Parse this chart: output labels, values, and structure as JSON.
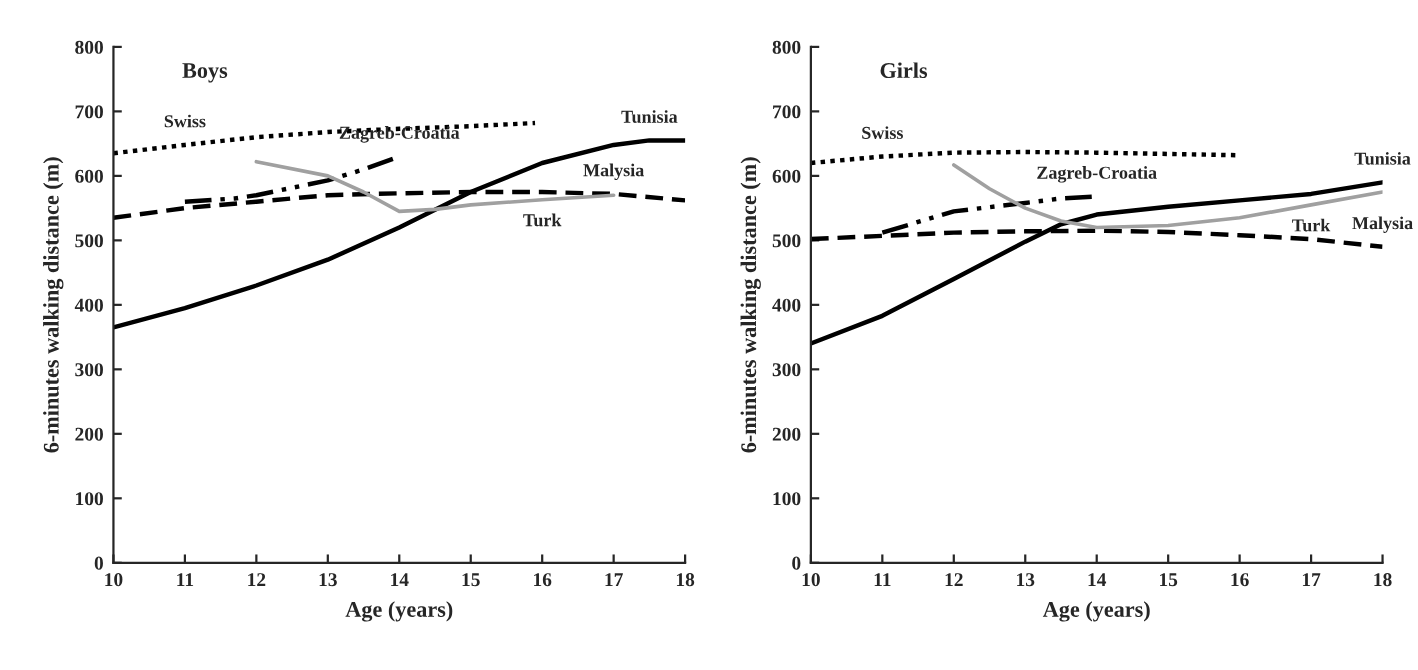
{
  "chart_data": [
    {
      "type": "line",
      "title": "Boys",
      "xlabel": "Age (years)",
      "ylabel": "6-minutes walking distance (m)",
      "xlim": [
        10,
        18
      ],
      "ylim": [
        0,
        800
      ],
      "xticks": [
        10,
        11,
        12,
        13,
        14,
        15,
        16,
        17,
        18
      ],
      "yticks": [
        0,
        100,
        200,
        300,
        400,
        500,
        600,
        700,
        800
      ],
      "grid": false,
      "legend": false,
      "series": [
        {
          "color": "#000000",
          "line_style": "solid",
          "x": [
            10,
            11,
            12,
            13,
            14,
            15,
            16,
            17,
            17.5,
            18
          ],
          "values": [
            365,
            395,
            430,
            470,
            520,
            575,
            620,
            648,
            655,
            655
          ]
        },
        {
          "color": "#000000",
          "line_style": "dashed",
          "x": [
            10,
            11,
            12,
            13,
            14,
            15,
            16,
            17,
            18
          ],
          "values": [
            535,
            550,
            560,
            570,
            573,
            575,
            575,
            572,
            562
          ]
        },
        {
          "color": "#000000",
          "line_style": "dotted",
          "x": [
            10,
            11,
            12,
            13,
            14,
            15,
            15.9
          ],
          "values": [
            635,
            648,
            660,
            668,
            673,
            677,
            682
          ]
        },
        {
          "color": "#000000",
          "line_style": "dashdot",
          "x": [
            11,
            11.7,
            12,
            13,
            13.5,
            14
          ],
          "values": [
            560,
            565,
            570,
            593,
            610,
            630
          ]
        },
        {
          "color": "#a0a0a0",
          "line_style": "solid",
          "x": [
            12,
            13,
            13.5,
            14,
            14.5,
            15,
            16,
            17
          ],
          "values": [
            622,
            600,
            575,
            545,
            548,
            555,
            563,
            570
          ]
        }
      ],
      "annotations": [
        {
          "text": "Swiss",
          "x": 11,
          "y": 648
        },
        {
          "text": "Zagreb-Croatia",
          "x": 14,
          "y": 630
        },
        {
          "text": "Tunisia",
          "x": 17.5,
          "y": 655
        },
        {
          "text": "Malysia",
          "x": 17,
          "y": 572
        },
        {
          "text": "Turk",
          "x": 16,
          "y": 563
        }
      ]
    },
    {
      "type": "line",
      "title": "Girls",
      "xlabel": "Age (years)",
      "ylabel": "6-minutes walking distance (m)",
      "xlim": [
        10,
        18
      ],
      "ylim": [
        0,
        800
      ],
      "xticks": [
        10,
        11,
        12,
        13,
        14,
        15,
        16,
        17,
        18
      ],
      "yticks": [
        0,
        100,
        200,
        300,
        400,
        500,
        600,
        700,
        800
      ],
      "grid": false,
      "legend": false,
      "series": [
        {
          "color": "#000000",
          "line_style": "solid",
          "x": [
            10,
            11,
            12,
            13,
            13.5,
            14,
            15,
            16,
            17,
            18
          ],
          "values": [
            340,
            383,
            440,
            498,
            525,
            540,
            552,
            562,
            572,
            590
          ]
        },
        {
          "color": "#000000",
          "line_style": "dashed",
          "x": [
            10,
            11,
            12,
            13,
            14,
            15,
            16,
            17,
            18
          ],
          "values": [
            502,
            507,
            512,
            514,
            515,
            513,
            508,
            502,
            490
          ]
        },
        {
          "color": "#000000",
          "line_style": "dotted",
          "x": [
            10,
            11,
            12,
            13,
            14,
            15,
            16
          ],
          "values": [
            620,
            630,
            636,
            637,
            636,
            634,
            632
          ]
        },
        {
          "color": "#000000",
          "line_style": "dashdot",
          "x": [
            11,
            12,
            13,
            13.5,
            14
          ],
          "values": [
            512,
            545,
            558,
            565,
            568
          ]
        },
        {
          "color": "#a0a0a0",
          "line_style": "solid",
          "x": [
            12,
            12.5,
            13,
            13.5,
            14,
            15,
            16,
            17,
            18
          ],
          "values": [
            617,
            580,
            550,
            530,
            520,
            523,
            535,
            555,
            575
          ]
        }
      ],
      "annotations": [
        {
          "text": "Swiss",
          "x": 11,
          "y": 630
        },
        {
          "text": "Zagreb-Croatia",
          "x": 14,
          "y": 568
        },
        {
          "text": "Tunisia",
          "x": 18,
          "y": 590
        },
        {
          "text": "Turk",
          "x": 17,
          "y": 555
        },
        {
          "text": "Malysia",
          "x": 18,
          "y": 490
        }
      ]
    }
  ]
}
